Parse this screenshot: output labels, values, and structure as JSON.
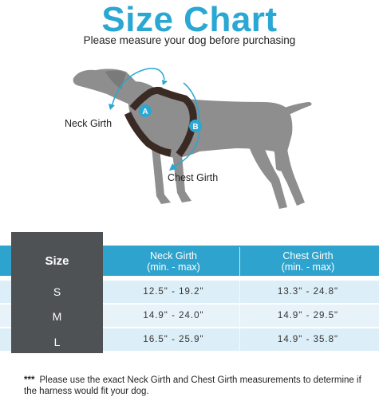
{
  "header": {
    "title": "Size Chart",
    "subtitle": "Please measure your dog before purchasing"
  },
  "illustration": {
    "marker_a": "A",
    "marker_b": "B",
    "neck_label": "Neck Girth",
    "chest_label": "Chest Girth",
    "colors": {
      "dog": "#8e8e8e",
      "harness": "#3a2a24",
      "accent": "#2aa7d2"
    }
  },
  "table": {
    "size_header": "Size",
    "neck_header_line1": "Neck Girth",
    "neck_header_line2": "(min. - max)",
    "chest_header_line1": "Chest Girth",
    "chest_header_line2": "(min. - max)",
    "rows": [
      {
        "size": "S",
        "neck": "12.5\" - 19.2\"",
        "chest": "13.3\" - 24.8\""
      },
      {
        "size": "M",
        "neck": "14.9\" - 24.0\"",
        "chest": "14.9\" - 29.5\""
      },
      {
        "size": "L",
        "neck": "16.5\" - 25.9\"",
        "chest": "14.9\" - 35.8\""
      }
    ],
    "colors": {
      "header": "#2ea3cd",
      "size_col": "#4e5255",
      "row_light": "#dceef7"
    }
  },
  "footnote": {
    "stars": "***",
    "text": "Please use the exact Neck Girth and Chest Girth measurements to determine if the harness would fit your dog."
  }
}
